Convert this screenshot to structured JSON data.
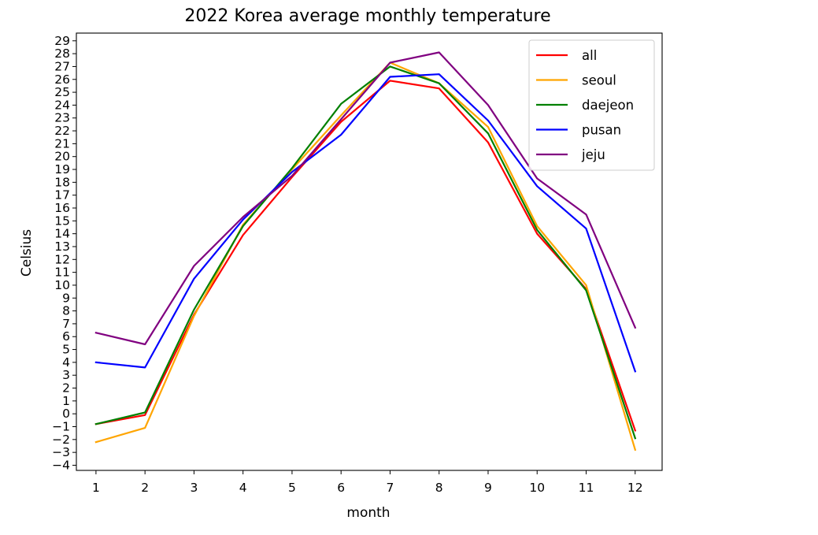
{
  "chart_data": {
    "type": "line",
    "title": "2022 Korea average monthly temperature",
    "xlabel": "month",
    "ylabel": "Celsius",
    "x": [
      1,
      2,
      3,
      4,
      5,
      6,
      7,
      8,
      9,
      10,
      11,
      12
    ],
    "xlim": [
      0.6,
      12.55
    ],
    "ylim": [
      -4.4,
      29.6
    ],
    "yticks": [
      -4,
      -3,
      -2,
      -1,
      0,
      1,
      2,
      3,
      4,
      5,
      6,
      7,
      8,
      9,
      10,
      11,
      12,
      13,
      14,
      15,
      16,
      17,
      18,
      19,
      20,
      21,
      22,
      23,
      24,
      25,
      26,
      27,
      28,
      29
    ],
    "xticks": [
      1,
      2,
      3,
      4,
      5,
      6,
      7,
      8,
      9,
      10,
      11,
      12
    ],
    "grid": false,
    "legend_position": "top-right",
    "series": [
      {
        "name": "all",
        "color": "#ff0000",
        "values": [
          -0.8,
          -0.1,
          7.7,
          13.9,
          18.4,
          22.7,
          25.9,
          25.3,
          21.1,
          14.0,
          9.7,
          -1.3
        ]
      },
      {
        "name": "seoul",
        "color": "#ffa500",
        "values": [
          -2.2,
          -1.1,
          7.6,
          14.7,
          19.0,
          23.2,
          27.3,
          25.7,
          22.3,
          14.6,
          10.0,
          -2.8
        ]
      },
      {
        "name": "daejeon",
        "color": "#008000",
        "values": [
          -0.8,
          0.1,
          8.1,
          14.6,
          19.1,
          24.1,
          27.0,
          25.7,
          21.8,
          14.3,
          9.6,
          -1.9
        ]
      },
      {
        "name": "pusan",
        "color": "#0000ff",
        "values": [
          4.0,
          3.6,
          10.5,
          15.1,
          18.8,
          21.7,
          26.2,
          26.4,
          22.8,
          17.7,
          14.4,
          3.3
        ]
      },
      {
        "name": "jeju",
        "color": "#800080",
        "values": [
          6.3,
          5.4,
          11.5,
          15.3,
          18.5,
          22.9,
          27.3,
          28.1,
          24.0,
          18.3,
          15.5,
          6.7
        ]
      }
    ]
  }
}
